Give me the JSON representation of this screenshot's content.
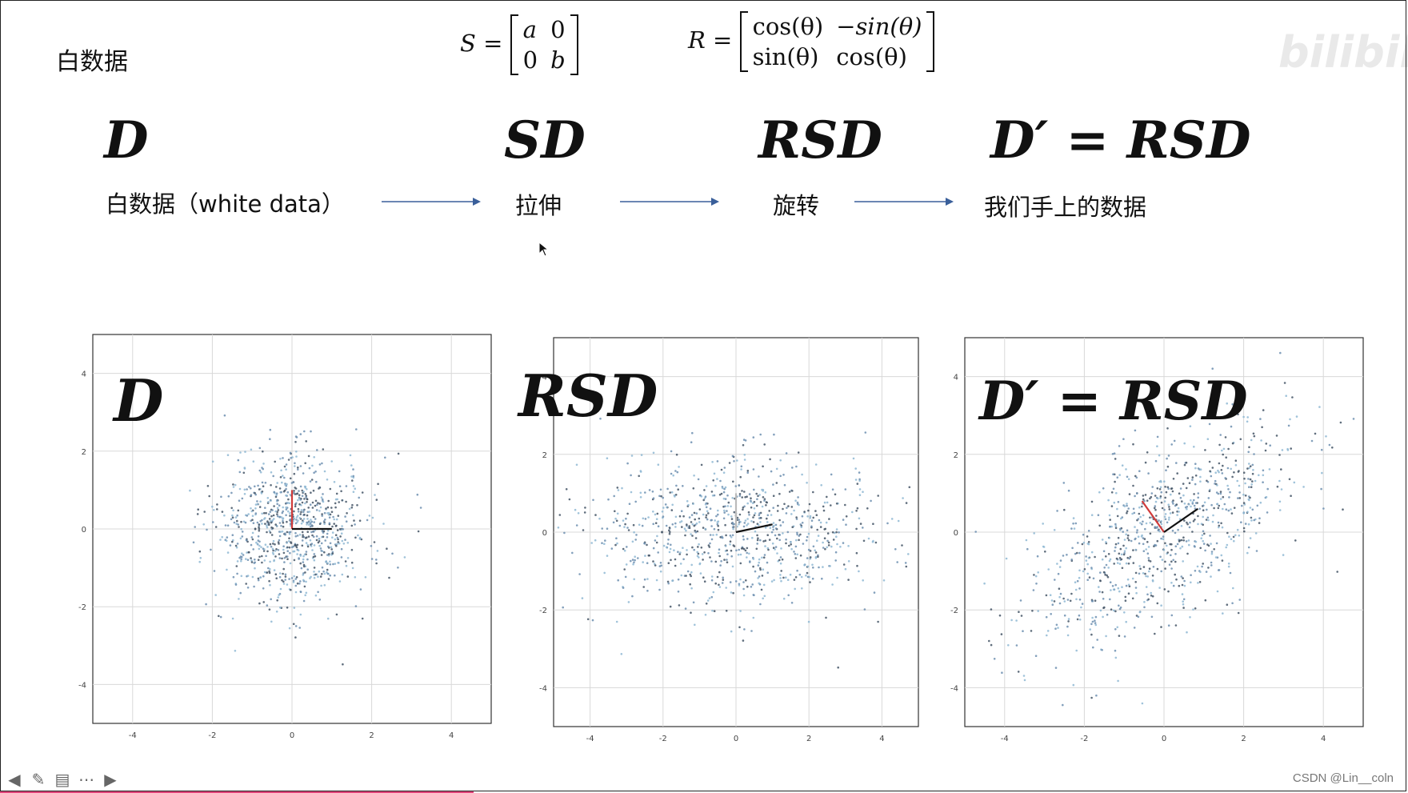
{
  "slide": {
    "title": "白数据",
    "formula_s_lhs": "S =",
    "matrix_s": [
      [
        "a",
        "0"
      ],
      [
        "0",
        "b"
      ]
    ],
    "formula_r_lhs": "R =",
    "matrix_r": [
      [
        "cos(θ)",
        "−sin(θ)"
      ],
      [
        "sin(θ)",
        "cos(θ)"
      ]
    ],
    "pipeline": [
      {
        "symbol": "D",
        "label": "白数据（white data）"
      },
      {
        "symbol": "SD",
        "label": "拉伸"
      },
      {
        "symbol": "RSD",
        "label": "旋转"
      },
      {
        "symbol": "D′ = RSD",
        "label": "我们手上的数据"
      }
    ],
    "watermark": "bilibili",
    "credit": "CSDN @Lin__coln"
  },
  "plots": [
    {
      "overlay": "D"
    },
    {
      "overlay": "RSD"
    },
    {
      "overlay": "D′ = RSD"
    }
  ],
  "chart_data": [
    {
      "type": "scatter",
      "xlim": [
        -5,
        5
      ],
      "ylim": [
        -5,
        5
      ],
      "xticks": [
        -4,
        -2,
        0,
        2,
        4
      ],
      "yticks": [
        -4,
        -2,
        0,
        2,
        4
      ],
      "tick_labels": [
        "-4",
        "-2",
        "0",
        "2",
        "4"
      ],
      "grid": true,
      "distribution": {
        "sx": 1,
        "sy": 1,
        "theta_deg": 0
      },
      "axes_vectors": [
        {
          "dx": 0,
          "dy": 1,
          "color": "#d03b3b"
        },
        {
          "dx": 1,
          "dy": 0,
          "color": "#111111"
        }
      ]
    },
    {
      "type": "scatter",
      "xlim": [
        -5,
        5
      ],
      "ylim": [
        -5,
        5
      ],
      "xticks": [
        -4,
        -2,
        0,
        2,
        4
      ],
      "yticks": [
        -4,
        -2,
        0,
        2,
        4
      ],
      "tick_labels": [
        "-4",
        "-2",
        "0",
        "2",
        "4"
      ],
      "grid": true,
      "distribution": {
        "sx": 2.2,
        "sy": 1,
        "theta_deg": 0
      },
      "axes_vectors": [
        {
          "dx": 0,
          "dy": 1,
          "color": "#bbbbbb"
        },
        {
          "dx": 1,
          "dy": 0.2,
          "color": "#111111"
        }
      ]
    },
    {
      "type": "scatter",
      "xlim": [
        -5,
        5
      ],
      "ylim": [
        -5,
        5
      ],
      "xticks": [
        -4,
        -2,
        0,
        2,
        4
      ],
      "yticks": [
        -4,
        -2,
        0,
        2,
        4
      ],
      "tick_labels": [
        "-4",
        "-2",
        "0",
        "2",
        "4"
      ],
      "grid": true,
      "distribution": {
        "sx": 2.2,
        "sy": 1,
        "theta_deg": 38
      },
      "axes_vectors": [
        {
          "dx": -0.55,
          "dy": 0.8,
          "color": "#d03b3b"
        },
        {
          "dx": 0.85,
          "dy": 0.6,
          "color": "#111111"
        }
      ]
    }
  ],
  "navigation": {
    "icons": [
      "prev-arrow-icon",
      "pen-icon",
      "slides-icon",
      "more-icon",
      "next-arrow-icon"
    ]
  }
}
